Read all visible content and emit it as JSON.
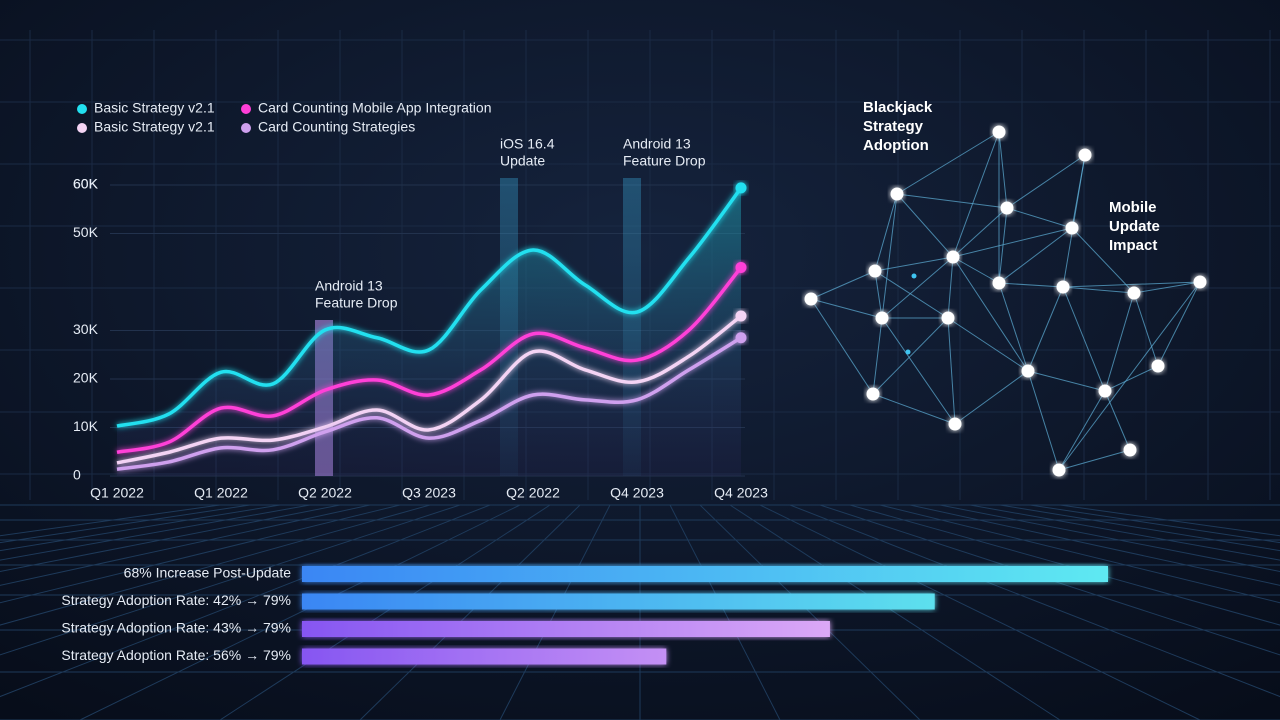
{
  "chart_data": [
    {
      "type": "line",
      "categories": [
        "Q1 2022",
        null,
        "Q1 2022",
        null,
        "Q2 2022",
        null,
        "Q3 2023",
        null,
        "Q2 2022",
        null,
        "Q4 2023",
        null,
        "Q4 2023"
      ],
      "series": [
        {
          "name": "Basic Strategy v2.1",
          "color": "#22e0f0",
          "values": [
            10300,
            12800,
            21400,
            19000,
            30100,
            28500,
            26000,
            38400,
            46600,
            39400,
            33800,
            45000,
            59400
          ]
        },
        {
          "name": "Card Counting Mobile App Integration",
          "color": "#ff3fd8",
          "values": [
            4900,
            7000,
            14000,
            12400,
            17700,
            19800,
            16700,
            21900,
            29300,
            26400,
            23900,
            30100,
            43000
          ]
        },
        {
          "name": "Basic Strategy v2.1",
          "color": "#f4d4f4",
          "values": [
            2700,
            4900,
            7800,
            7400,
            10100,
            13600,
            9500,
            15700,
            25600,
            21900,
            19400,
            24700,
            33000
          ]
        },
        {
          "name": "Card Counting Strategies",
          "color": "#cfa0ee",
          "values": [
            1400,
            2900,
            5800,
            5400,
            9100,
            12000,
            7800,
            11500,
            16700,
            15700,
            15700,
            21900,
            28500
          ]
        }
      ],
      "ylim": [
        0,
        70000
      ],
      "yticks": [
        0,
        {
          "value": 10000,
          "label": "10K"
        },
        {
          "value": 20000,
          "label": "20K"
        },
        {
          "value": 30000,
          "label": "30K"
        },
        {
          "value": 50000,
          "label": "50K"
        },
        {
          "value": 60000,
          "label": "60K"
        },
        {
          "value": 60000,
          "label": "60K"
        }
      ],
      "annotations": [
        {
          "lines": [
            "Android 13",
            "Feature Drop"
          ]
        },
        {
          "lines": [
            "iOS 16.4",
            "Update"
          ]
        },
        {
          "lines": [
            "Android 13",
            "Feature Drop"
          ]
        }
      ]
    },
    {
      "type": "hbar",
      "categories": [
        "68% Increase Post-Update",
        "Strategy Adoption Rate: 42% → 79%",
        "Strategy Adoption Rate: 43% → 79%",
        "Strategy Adoption Rate: 56% → 79%"
      ],
      "values": [
        100,
        78.5,
        65.5,
        45.2
      ],
      "xlim": [
        0,
        100
      ],
      "colors": [
        [
          "#3a86f4",
          "#5ee9f2"
        ],
        [
          "#3a86f4",
          "#5de0ee"
        ],
        [
          "#8656f2",
          "#dba8f6"
        ],
        [
          "#8656f2",
          "#c490f4"
        ]
      ]
    }
  ],
  "diagram": {
    "labels": [
      {
        "lines": [
          "Blackjack",
          "Strategy",
          "Adoption"
        ]
      },
      {
        "lines": [
          "Mobile",
          "Update",
          "Impact"
        ]
      }
    ]
  }
}
